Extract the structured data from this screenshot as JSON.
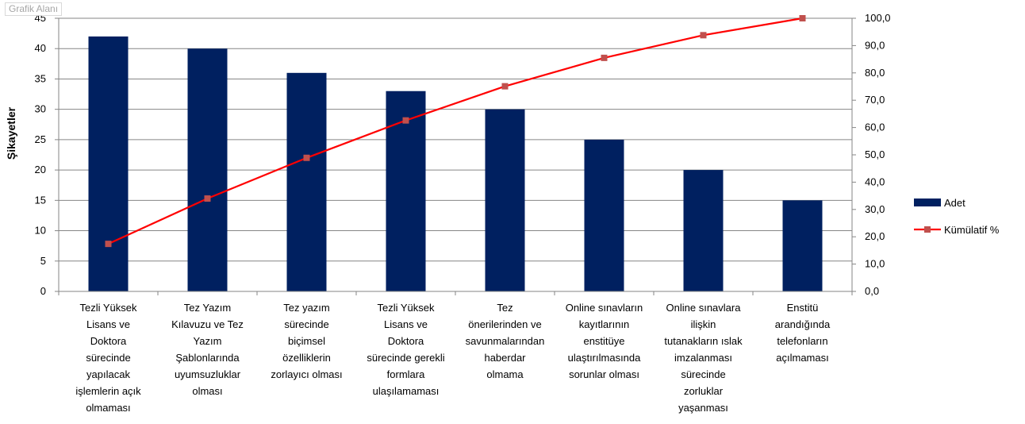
{
  "chart_area_label": "Grafik Alanı",
  "chart_data": {
    "type": "bar",
    "ylabel": "Şikayetler",
    "ylim": [
      0,
      45
    ],
    "y_ticks": [
      "0",
      "5",
      "10",
      "15",
      "20",
      "25",
      "30",
      "35",
      "40",
      "45"
    ],
    "y2lim": [
      0,
      100
    ],
    "y2_ticks": [
      "0,0",
      "10,0",
      "20,0",
      "30,0",
      "40,0",
      "50,0",
      "60,0",
      "70,0",
      "80,0",
      "90,0",
      "100,0"
    ],
    "grid": true,
    "legend_position": "right",
    "categories": [
      [
        "Tezli Yüksek",
        "Lisans ve",
        "Doktora",
        "sürecinde",
        "yapılacak",
        "işlemlerin açık",
        "olmaması"
      ],
      [
        "Tez Yazım",
        "Kılavuzu ve Tez",
        "Yazım",
        "Şablonlarında",
        "uyumsuzluklar",
        "olması"
      ],
      [
        "Tez yazım",
        "sürecinde",
        "biçimsel",
        "özelliklerin",
        "zorlayıcı olması"
      ],
      [
        "Tezli Yüksek",
        "Lisans ve",
        "Doktora",
        "sürecinde gerekli",
        "formlara",
        "ulaşılamaması"
      ],
      [
        "Tez",
        "önerilerinden ve",
        "savunmalarından",
        "haberdar",
        "olmama"
      ],
      [
        "Online sınavların",
        "kayıtlarının",
        "enstitüye",
        "ulaştırılmasında",
        "sorunlar olması"
      ],
      [
        "Online sınavlara",
        "ilişkin",
        "tutanakların ıslak",
        "imzalanması",
        "sürecinde",
        "zorluklar",
        "yaşanması"
      ],
      [
        "Enstitü",
        "arandığında",
        "telefonların",
        "açılmaması"
      ]
    ],
    "series": [
      {
        "name": "Adet",
        "type": "bar",
        "axis": "left",
        "color": "#002060",
        "values": [
          42,
          40,
          36,
          33,
          30,
          25,
          20,
          15
        ]
      },
      {
        "name": "Kümülatif %",
        "type": "line",
        "axis": "right",
        "color": "#ff0000",
        "marker_color": "#c0504d",
        "values": [
          17.4,
          34.0,
          48.9,
          62.6,
          75.1,
          85.5,
          93.8,
          100.0
        ]
      }
    ]
  }
}
